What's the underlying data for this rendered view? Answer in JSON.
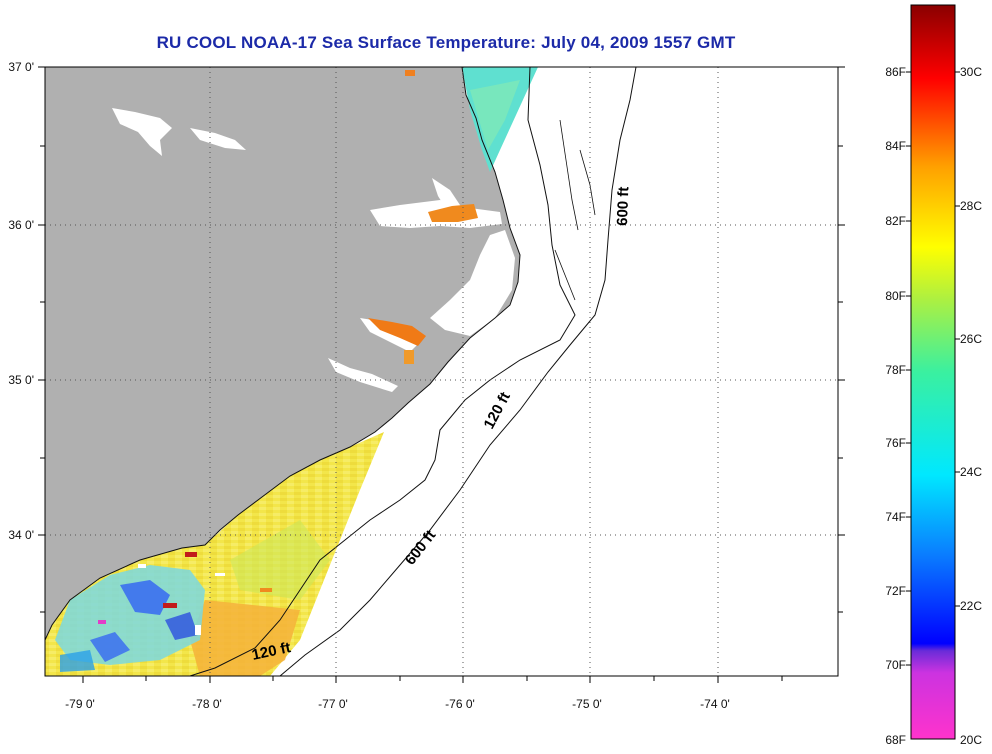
{
  "title": "RU COOL  NOAA-17  Sea Surface Temperature:  July 04, 2009 1557 GMT",
  "map": {
    "latitude_labels": [
      "37 0'",
      "36 0'",
      "35 0'",
      "34 0'"
    ],
    "longitude_labels": [
      "-79 0'",
      "-78 0'",
      "-77 0'",
      "-76 0'",
      "-75 0'",
      "-74 0'"
    ],
    "contour_labels": [
      "600 ft",
      "120 ft",
      "600 ft",
      "120 ft"
    ],
    "land_color": "#b0b0b0"
  },
  "colorbar": {
    "fahrenheit_labels": [
      "86F",
      "84F",
      "82F",
      "80F",
      "78F",
      "76F",
      "74F",
      "72F",
      "70F",
      "68F"
    ],
    "celsius_labels": [
      "30C",
      "28C",
      "26C",
      "24C",
      "22C",
      "20C"
    ]
  }
}
